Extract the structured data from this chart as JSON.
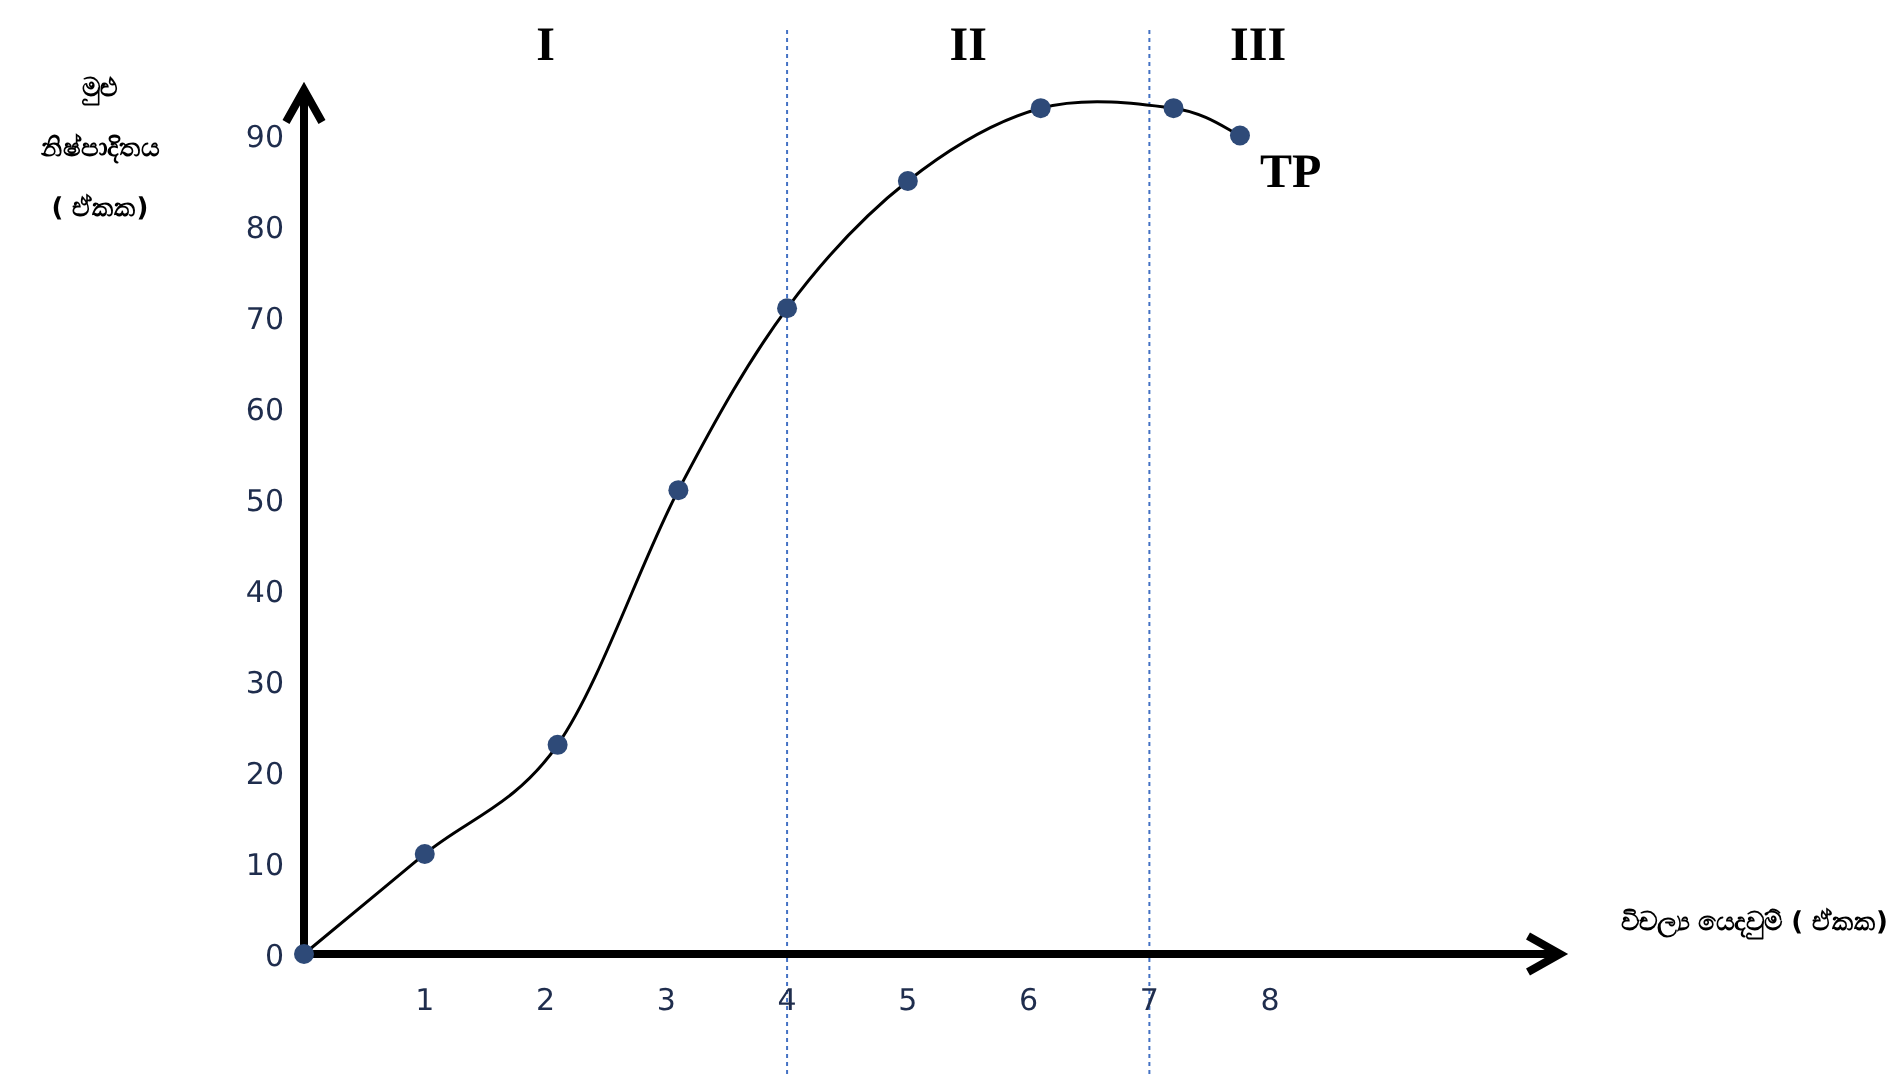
{
  "chart_data": {
    "type": "line",
    "xlabel": "විචල්‍ය යෙදවුම් ( ඒකක)",
    "ylabel": "මුළු\nනිෂ්පාදිතය\n( ඒකක)",
    "x": [
      0,
      1,
      2.1,
      3.1,
      4,
      5,
      6.1,
      7.2,
      7.75
    ],
    "series": [
      {
        "color": "#000000",
        "values": [
          0,
          11,
          23,
          51,
          71,
          85,
          93,
          93,
          90
        ]
      }
    ],
    "marker": "circle",
    "xlim": [
      0,
      10.4
    ],
    "ylim": [
      0,
      95
    ],
    "xticks": [
      1,
      2,
      3,
      4,
      5,
      6,
      7,
      8
    ],
    "yticks": [
      0,
      10,
      20,
      30,
      40,
      50,
      60,
      70,
      80,
      90
    ],
    "ref_lines": [
      {
        "axis": "x",
        "value": 4,
        "color": "#4472c4",
        "line_style": "dotted"
      },
      {
        "axis": "x",
        "value": 7,
        "color": "#4472c4",
        "line_style": "dotted"
      }
    ],
    "annotations": [
      "I",
      "II",
      "III",
      {
        "text": "TP",
        "x": 7.75,
        "y": 90
      }
    ],
    "grid": false
  }
}
